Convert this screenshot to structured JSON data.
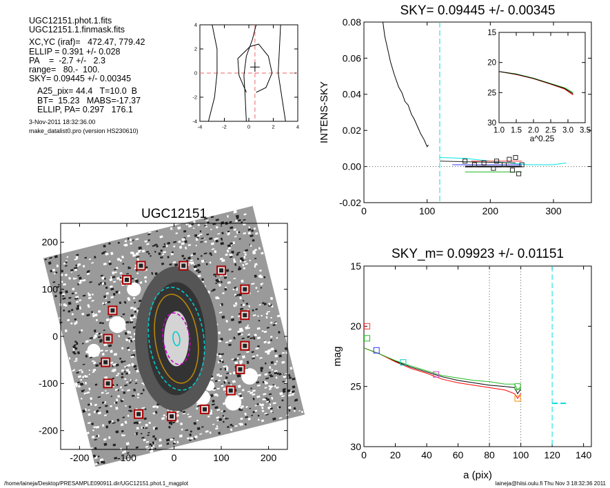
{
  "info": {
    "lines_a": [
      "UGC12151.phot.1.fits",
      "UGC12151.1.finmask.fits"
    ],
    "lines_b": [
      "XC,YC (iraf)=   472.47, 779.42",
      "ELLIP = 0.391 +/- 0.028",
      "PA    =  -2.7 +/-   2.3",
      "range=   80.-  100.",
      "SKY= 0.09445 +/- 0.00345"
    ],
    "lines_c": [
      "A25_pix= 44.4   T=10.0  B",
      "BT=  15.23   MABS=-17.37",
      "ELLIP, PA= 0.297   176.1"
    ],
    "date": "3-Nov-2011 18:32:36.00",
    "program": "make_datalist0.pro (version HS230610)"
  },
  "footer": {
    "left": "/home/laineja/Desktop/PRESAMPLE090911.dir/UGC12151.phot.1_magplot",
    "right": "laineja@hiisi.oulu.fi  Thu Nov  3 18:32:36 2011"
  },
  "chart_data": [
    {
      "id": "contour",
      "type": "contour",
      "title": "",
      "xlim": [
        -4,
        4
      ],
      "ylim": [
        -4,
        4
      ],
      "xticks": [
        "-4",
        "-2",
        "0",
        "2",
        "4"
      ],
      "yticks": [
        "-4",
        "-2",
        "0",
        "2",
        "4"
      ],
      "center": [
        0.5,
        0.5
      ],
      "contours": [
        [
          [
            -0.2,
            -4
          ],
          [
            -0.3,
            -2
          ],
          [
            -0.4,
            -0.2
          ],
          [
            -0.2,
            1.4
          ],
          [
            0.3,
            2.8
          ],
          [
            0.6,
            4
          ]
        ],
        [
          [
            -3.3,
            -4
          ],
          [
            -2.8,
            -2
          ],
          [
            -2.6,
            0
          ],
          [
            -2.6,
            2
          ],
          [
            -3.0,
            4
          ]
        ],
        [
          [
            3.0,
            -4
          ],
          [
            2.7,
            -2
          ],
          [
            2.4,
            0
          ],
          [
            2.5,
            2
          ],
          [
            2.6,
            4
          ]
        ],
        [
          [
            -0.2,
            -1.6
          ],
          [
            -0.8,
            -0.2
          ],
          [
            -0.9,
            1.2
          ],
          [
            0.1,
            2.2
          ],
          [
            0.8,
            2.4
          ],
          [
            1.6,
            1.4
          ],
          [
            1.9,
            0
          ],
          [
            1.4,
            -1.2
          ],
          [
            0.6,
            -1.6
          ]
        ]
      ]
    },
    {
      "id": "sky",
      "type": "line",
      "title": "SKY= 0.09445 +/- 0.00345",
      "xlabel": "",
      "ylabel": "INTENS-SKY",
      "xlim": [
        0,
        360
      ],
      "ylim": [
        -0.02,
        0.08
      ],
      "xticks": [
        "0",
        "100",
        "200",
        "300"
      ],
      "yticks": [
        "-0.02",
        "0.00",
        "0.02",
        "0.04",
        "0.06",
        "0.08"
      ],
      "vline": 120,
      "series": [
        {
          "color": "#000000",
          "points": [
            [
              30,
              0.08
            ],
            [
              33,
              0.072
            ],
            [
              37,
              0.066
            ],
            [
              42,
              0.058
            ],
            [
              48,
              0.051
            ],
            [
              55,
              0.044
            ],
            [
              60,
              0.041
            ],
            [
              65,
              0.036
            ],
            [
              70,
              0.034
            ],
            [
              75,
              0.029
            ],
            [
              80,
              0.026
            ],
            [
              85,
              0.022
            ],
            [
              90,
              0.018
            ],
            [
              95,
              0.015
            ],
            [
              100,
              0.011
            ],
            [
              102,
              0.012
            ]
          ]
        },
        {
          "color": "#00e5e5",
          "points": [
            [
              120,
              0.005
            ],
            [
              160,
              0.0045
            ],
            [
              200,
              0.003
            ],
            [
              230,
              0.002
            ],
            [
              260,
              0.001
            ],
            [
              300,
              0.001
            ],
            [
              320,
              0.002
            ]
          ]
        },
        {
          "color": "#000000",
          "points": [
            [
              160,
              0.0
            ],
            [
              250,
              0.0
            ]
          ]
        },
        {
          "color": "#ff3333",
          "points": [
            [
              170,
              0.003
            ],
            [
              250,
              0.003
            ]
          ]
        },
        {
          "color": "#22bb22",
          "points": [
            [
              160,
              -0.003
            ],
            [
              250,
              -0.003
            ]
          ]
        },
        {
          "color": "#3333ff",
          "points": [
            [
              140,
              0.001
            ],
            [
              250,
              0.001
            ]
          ]
        },
        {
          "color": "#222222",
          "points": [
            [
              120,
              0.003
            ],
            [
              240,
              0.002
            ]
          ]
        }
      ],
      "squares": [
        [
          160,
          0.003
        ],
        [
          175,
          0.001
        ],
        [
          190,
          0.002
        ],
        [
          205,
          -0.001
        ],
        [
          210,
          0.003
        ],
        [
          222,
          0.001
        ],
        [
          230,
          0.004
        ],
        [
          235,
          -0.002
        ],
        [
          240,
          0.005
        ],
        [
          245,
          -0.004
        ],
        [
          250,
          0.001
        ]
      ]
    },
    {
      "id": "inset",
      "type": "line",
      "title": "",
      "xlabel": "a^0.25",
      "ylabel": "",
      "xlim": [
        1.0,
        3.5
      ],
      "ylim": [
        30,
        15
      ],
      "xticks": [
        "1.0",
        "1.5",
        "2.0",
        "2.5",
        "3.0",
        "3.5"
      ],
      "yticks": [
        "15",
        "20",
        "25",
        "30"
      ],
      "series": [
        {
          "color": "#ff0000",
          "points": [
            [
              1.0,
              21.5
            ],
            [
              1.5,
              22.0
            ],
            [
              2.0,
              22.7
            ],
            [
              2.5,
              23.6
            ],
            [
              2.9,
              24.4
            ],
            [
              3.15,
              25.4
            ]
          ]
        },
        {
          "color": "#22bb22",
          "points": [
            [
              1.0,
              21.5
            ],
            [
              1.5,
              21.9
            ],
            [
              2.0,
              22.6
            ],
            [
              2.5,
              23.5
            ],
            [
              2.9,
              24.2
            ],
            [
              3.15,
              25.0
            ]
          ]
        },
        {
          "color": "#000000",
          "points": [
            [
              1.0,
              21.5
            ],
            [
              1.5,
              21.95
            ],
            [
              2.0,
              22.65
            ],
            [
              2.5,
              23.55
            ],
            [
              2.9,
              24.3
            ],
            [
              3.15,
              25.2
            ]
          ]
        }
      ]
    },
    {
      "id": "image",
      "type": "image",
      "title": "UGC12151",
      "xlim": [
        -240,
        240
      ],
      "ylim": [
        -240,
        240
      ],
      "xticks": [
        "-200",
        "-100",
        "0",
        "100",
        "200"
      ],
      "yticks": [
        "-200",
        "-100",
        "0",
        "100",
        "200"
      ],
      "squares": [
        [
          -70,
          150
        ],
        [
          20,
          150
        ],
        [
          -100,
          120
        ],
        [
          100,
          140
        ],
        [
          150,
          100
        ],
        [
          -130,
          55
        ],
        [
          150,
          45
        ],
        [
          -140,
          -5
        ],
        [
          150,
          -20
        ],
        [
          -145,
          -55
        ],
        [
          140,
          -70
        ],
        [
          -140,
          -100
        ],
        [
          120,
          -115
        ],
        [
          -75,
          -165
        ],
        [
          -5,
          -170
        ],
        [
          65,
          -155
        ]
      ],
      "ellipses": [
        {
          "color": "#00cccc",
          "rx": 58,
          "ry": 110,
          "dashed": true
        },
        {
          "color": "#b8860b",
          "rx": 45,
          "ry": 95,
          "dashed": false
        },
        {
          "color": "#cc00cc",
          "rx": 28,
          "ry": 55,
          "dashed": true
        },
        {
          "color": "#00cccc",
          "rx": 7,
          "ry": 15,
          "dashed": false
        }
      ]
    },
    {
      "id": "mag",
      "type": "line",
      "title": "SKY_m=  0.09923 +/- 0.01151",
      "xlabel": "a (pix)",
      "ylabel": "mag",
      "xlim": [
        0,
        145
      ],
      "ylim": [
        30,
        15
      ],
      "xticks": [
        "0",
        "20",
        "40",
        "60",
        "80",
        "100",
        "120",
        "140"
      ],
      "yticks": [
        "15",
        "20",
        "25",
        "30"
      ],
      "vlines": [
        80,
        100
      ],
      "cyan_vline": 120,
      "cyan_seg": [
        [
          120,
          26.4
        ],
        [
          130,
          26.4
        ]
      ],
      "series": [
        {
          "color": "#000000",
          "points": [
            [
              0,
              21.8
            ],
            [
              10,
              22.3
            ],
            [
              20,
              22.9
            ],
            [
              30,
              23.4
            ],
            [
              40,
              23.8
            ],
            [
              50,
              24.2
            ],
            [
              60,
              24.5
            ],
            [
              70,
              24.7
            ],
            [
              80,
              24.9
            ],
            [
              90,
              25.0
            ],
            [
              96,
              25.1
            ],
            [
              98,
              25.6
            ],
            [
              100,
              25.2
            ]
          ]
        },
        {
          "color": "#ff0000",
          "points": [
            [
              0,
              21.8
            ],
            [
              10,
              22.3
            ],
            [
              20,
              22.95
            ],
            [
              30,
              23.5
            ],
            [
              40,
              23.9
            ],
            [
              50,
              24.4
            ],
            [
              60,
              24.7
            ],
            [
              70,
              24.9
            ],
            [
              80,
              25.1
            ],
            [
              90,
              25.3
            ],
            [
              96,
              25.6
            ],
            [
              98,
              26.0
            ],
            [
              100,
              25.6
            ]
          ]
        },
        {
          "color": "#22bb22",
          "points": [
            [
              0,
              21.8
            ],
            [
              10,
              22.3
            ],
            [
              20,
              22.85
            ],
            [
              30,
              23.3
            ],
            [
              40,
              23.7
            ],
            [
              50,
              24.1
            ],
            [
              60,
              24.3
            ],
            [
              70,
              24.5
            ],
            [
              80,
              24.6
            ],
            [
              90,
              24.8
            ],
            [
              96,
              24.8
            ],
            [
              98,
              25.3
            ],
            [
              100,
              25.0
            ]
          ]
        }
      ],
      "markers": [
        {
          "color": "#ff3333",
          "x": 2,
          "y": 20.0
        },
        {
          "color": "#22bb22",
          "x": 2,
          "y": 21.0
        },
        {
          "color": "#3333ff",
          "x": 8,
          "y": 22.0
        },
        {
          "color": "#00cccc",
          "x": 25,
          "y": 23.0
        },
        {
          "color": "#cc44cc",
          "x": 46,
          "y": 24.0
        },
        {
          "color": "#22bb22",
          "x": 98,
          "y": 25.0
        },
        {
          "color": "#ff8800",
          "x": 98,
          "y": 26.0
        }
      ]
    }
  ]
}
